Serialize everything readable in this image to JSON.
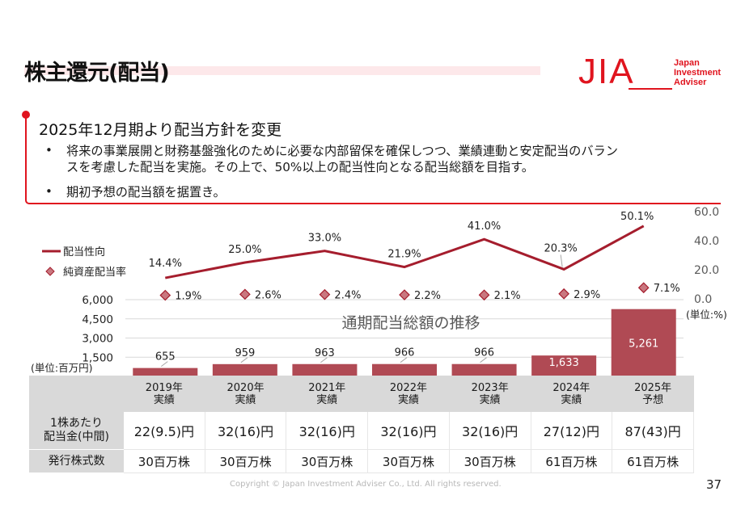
{
  "page": {
    "title": "株主還元(配当)",
    "page_number": "37",
    "copyright": "Copyright © Japan Investment Adviser Co., Ltd. All rights reserved."
  },
  "logo": {
    "mark": "JIA",
    "line1": "Japan",
    "line2": "Investment",
    "line3": "Adviser",
    "color": "#e0141e"
  },
  "policy": {
    "heading": "2025年12月期より配当方針を変更",
    "bullet_glyph": "•",
    "bullets": [
      {
        "line1": "将来の事業展開と財務基盤強化のために必要な内部留保を確保しつつ、業績連動と安定配当のバラン",
        "line2": "スを考慮した配当を実施。その上で、50%以上の配当性向となる配当総額を目指す。"
      },
      {
        "line1": "期初予想の配当額を据置き。"
      }
    ]
  },
  "chart_data": {
    "type": "bar",
    "title": "通期配当総額の推移",
    "categories": [
      "2019年",
      "2020年",
      "2021年",
      "2022年",
      "2023年",
      "2024年",
      "2025年"
    ],
    "left_axis": {
      "unit_label": "(単位:百万円)",
      "ticks": [
        "1,500",
        "3,000",
        "4,500",
        "6,000"
      ],
      "tick_values": [
        1500,
        3000,
        4500,
        6000
      ],
      "range": [
        0,
        6000
      ]
    },
    "right_axis": {
      "unit_label": "(単位:%)",
      "ticks": [
        "0.0",
        "20.0",
        "40.0",
        "60.0"
      ],
      "tick_values": [
        0,
        20,
        40,
        60
      ],
      "range": [
        0,
        60
      ]
    },
    "series": [
      {
        "name": "通期配当総額",
        "type": "bar",
        "axis": "left",
        "values": [
          655,
          959,
          963,
          966,
          966,
          1633,
          5261
        ],
        "labels": [
          "655",
          "959",
          "963",
          "966",
          "966",
          "1,633",
          "5,261"
        ],
        "color": "#b04a54"
      },
      {
        "name": "配当性向",
        "type": "line",
        "axis": "right",
        "values": [
          14.4,
          25.0,
          33.0,
          21.9,
          41.0,
          20.3,
          50.1
        ],
        "labels": [
          "14.4%",
          "25.0%",
          "33.0%",
          "21.9%",
          "41.0%",
          "20.3%",
          "50.1%"
        ],
        "color": "#a51d2d"
      },
      {
        "name": "純資産配当率",
        "type": "scatter",
        "marker": "diamond",
        "values": [
          1.9,
          2.6,
          2.4,
          2.2,
          2.1,
          2.9,
          7.1
        ],
        "labels": [
          "1.9%",
          "2.6%",
          "2.4%",
          "2.2%",
          "2.1%",
          "2.9%",
          "7.1%"
        ],
        "color": "#c9777f",
        "edge_color": "#a51d2d"
      }
    ],
    "legend": {
      "placement": "left",
      "items": [
        "配当性向",
        "純資産配当率"
      ]
    },
    "grid": true
  },
  "table": {
    "header_blank": "",
    "columns": [
      {
        "year": "2019年",
        "kind": "実績"
      },
      {
        "year": "2020年",
        "kind": "実績"
      },
      {
        "year": "2021年",
        "kind": "実績"
      },
      {
        "year": "2022年",
        "kind": "実績"
      },
      {
        "year": "2023年",
        "kind": "実績"
      },
      {
        "year": "2024年",
        "kind": "実績"
      },
      {
        "year": "2025年",
        "kind": "予想"
      }
    ],
    "rows": [
      {
        "label_line1": "1株あたり",
        "label_line2": "配当金(中間)",
        "cells": [
          "22(9.5)円",
          "32(16)円",
          "32(16)円",
          "32(16)円",
          "32(16)円",
          "27(12)円",
          "87(43)円"
        ]
      },
      {
        "label_line1": "発行株式数",
        "cells": [
          "30百万株",
          "30百万株",
          "30百万株",
          "30百万株",
          "30百万株",
          "61百万株",
          "61百万株"
        ]
      }
    ]
  }
}
